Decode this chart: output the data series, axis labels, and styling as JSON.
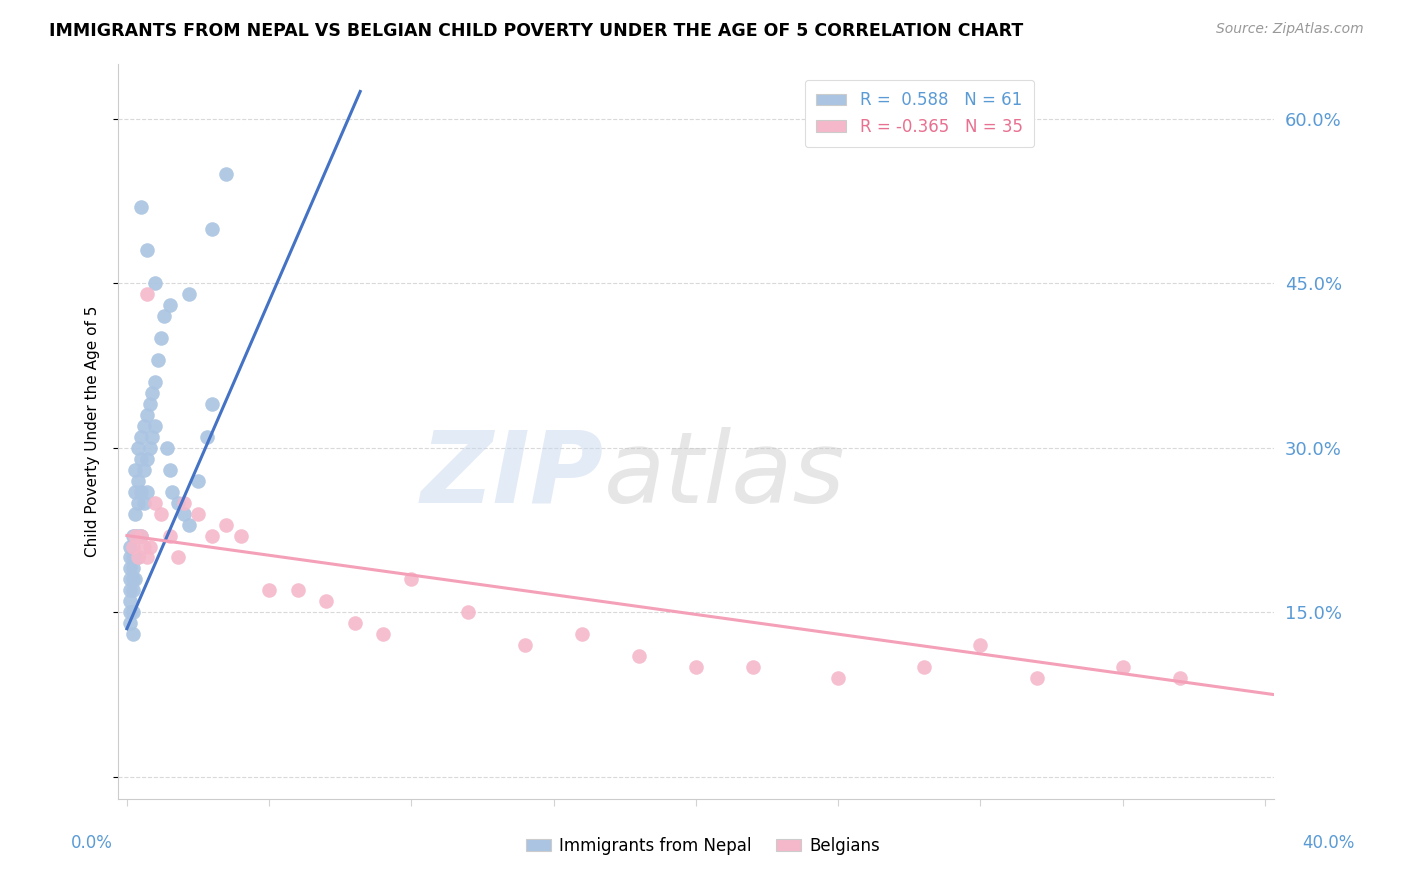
{
  "title": "IMMIGRANTS FROM NEPAL VS BELGIAN CHILD POVERTY UNDER THE AGE OF 5 CORRELATION CHART",
  "source": "Source: ZipAtlas.com",
  "ylabel": "Child Poverty Under the Age of 5",
  "ytick_vals": [
    0.0,
    0.15,
    0.3,
    0.45,
    0.6
  ],
  "ytick_labels": [
    "",
    "15.0%",
    "30.0%",
    "45.0%",
    "60.0%"
  ],
  "xlim": [
    -0.003,
    0.403
  ],
  "ylim": [
    -0.02,
    0.65
  ],
  "legend_r1": "R =  0.588   N = 61",
  "legend_r2": "R = -0.365   N = 35",
  "color_nepal": "#aac4e2",
  "color_belgians": "#f5b8ca",
  "color_nepal_line": "#4472c4",
  "color_belgians_line": "#f4a0b8",
  "nepal_line_x": [
    0.0,
    0.082
  ],
  "nepal_line_y": [
    0.135,
    0.625
  ],
  "belgium_line_x": [
    0.0,
    0.403
  ],
  "belgium_line_y": [
    0.22,
    0.075
  ],
  "nepal_x": [
    0.001,
    0.001,
    0.001,
    0.001,
    0.001,
    0.001,
    0.001,
    0.001,
    0.002,
    0.002,
    0.002,
    0.002,
    0.002,
    0.002,
    0.002,
    0.003,
    0.003,
    0.003,
    0.003,
    0.003,
    0.003,
    0.004,
    0.004,
    0.004,
    0.004,
    0.004,
    0.005,
    0.005,
    0.005,
    0.005,
    0.006,
    0.006,
    0.006,
    0.007,
    0.007,
    0.007,
    0.008,
    0.008,
    0.009,
    0.009,
    0.01,
    0.01,
    0.011,
    0.012,
    0.013,
    0.014,
    0.015,
    0.016,
    0.018,
    0.02,
    0.022,
    0.025,
    0.028,
    0.03,
    0.005,
    0.007,
    0.01,
    0.015,
    0.022,
    0.03,
    0.035
  ],
  "nepal_y": [
    0.19,
    0.21,
    0.2,
    0.18,
    0.17,
    0.16,
    0.15,
    0.14,
    0.22,
    0.2,
    0.19,
    0.18,
    0.17,
    0.15,
    0.13,
    0.28,
    0.26,
    0.24,
    0.22,
    0.2,
    0.18,
    0.3,
    0.27,
    0.25,
    0.22,
    0.2,
    0.31,
    0.29,
    0.26,
    0.22,
    0.32,
    0.28,
    0.25,
    0.33,
    0.29,
    0.26,
    0.34,
    0.3,
    0.35,
    0.31,
    0.36,
    0.32,
    0.38,
    0.4,
    0.42,
    0.3,
    0.28,
    0.26,
    0.25,
    0.24,
    0.23,
    0.27,
    0.31,
    0.34,
    0.52,
    0.48,
    0.45,
    0.43,
    0.44,
    0.5,
    0.55
  ],
  "belgium_x": [
    0.002,
    0.003,
    0.004,
    0.005,
    0.006,
    0.007,
    0.008,
    0.01,
    0.012,
    0.015,
    0.018,
    0.02,
    0.025,
    0.03,
    0.035,
    0.04,
    0.05,
    0.06,
    0.07,
    0.08,
    0.09,
    0.1,
    0.12,
    0.14,
    0.16,
    0.18,
    0.2,
    0.22,
    0.25,
    0.28,
    0.3,
    0.32,
    0.35,
    0.37,
    0.007
  ],
  "belgium_y": [
    0.21,
    0.22,
    0.2,
    0.22,
    0.21,
    0.2,
    0.21,
    0.25,
    0.24,
    0.22,
    0.2,
    0.25,
    0.24,
    0.22,
    0.23,
    0.22,
    0.17,
    0.17,
    0.16,
    0.14,
    0.13,
    0.18,
    0.15,
    0.12,
    0.13,
    0.11,
    0.1,
    0.1,
    0.09,
    0.1,
    0.12,
    0.09,
    0.1,
    0.09,
    0.44
  ]
}
